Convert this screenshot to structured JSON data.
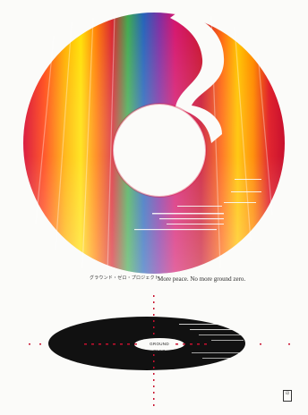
{
  "poster": {
    "headline_jp": "グラウンド・ゼロ・プロジェクト",
    "headline_en": "More peace. No more ground zero.",
    "fine_print": "",
    "disc_label": "GROUND ZERO",
    "seal_text": "印"
  },
  "colors": {
    "background": "#fbfbf9",
    "spectrum": [
      "#c8102e",
      "#e8301a",
      "#ff7a00",
      "#ffd200",
      "#3aa84a",
      "#1f5fb8",
      "#6b2aa0",
      "#d4106a"
    ],
    "shadow_disc": "#111111",
    "crosshair": "#c8102e"
  }
}
